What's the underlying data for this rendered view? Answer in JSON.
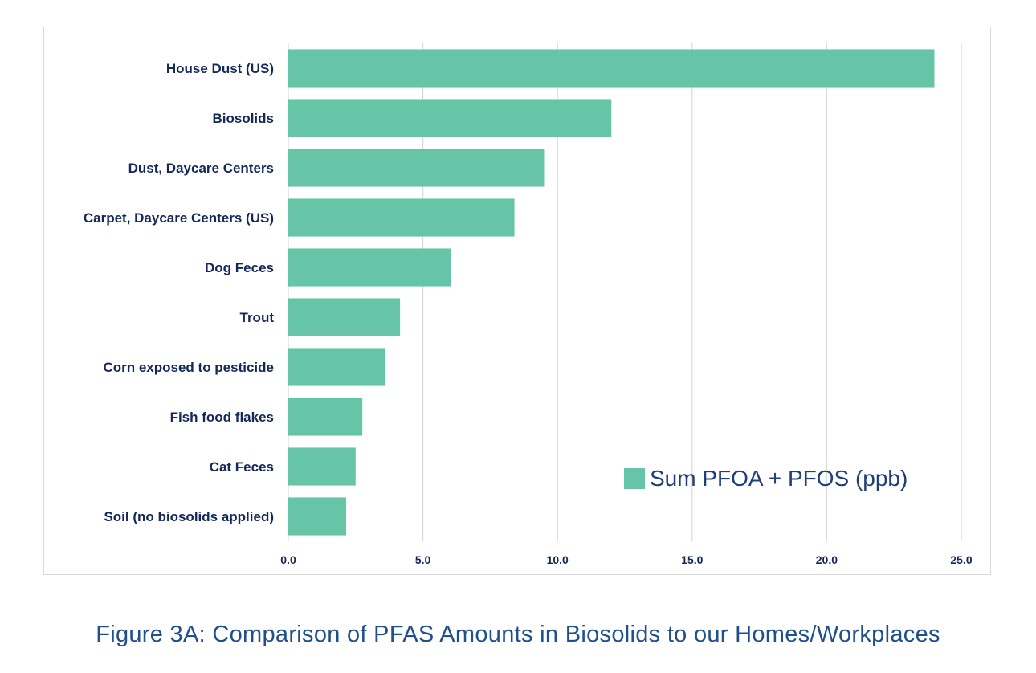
{
  "caption": "Figure 3A: Comparison of PFAS Amounts in Biosolids to our Homes/Workplaces",
  "colors": {
    "bar": "#67c5a7",
    "label": "#14285a",
    "grid": "#d9d9d9",
    "legend_text": "#1f3f7a",
    "caption": "#1f4f8c"
  },
  "chart_data": {
    "type": "bar",
    "orientation": "horizontal",
    "title": "",
    "xlabel": "",
    "ylabel": "",
    "categories": [
      "House Dust (US)",
      "Biosolids",
      "Dust, Daycare Centers",
      "Carpet, Daycare Centers (US)",
      "Dog Feces",
      "Trout",
      "Corn exposed to pesticide",
      "Fish food flakes",
      "Cat Feces",
      "Soil (no biosolids applied)"
    ],
    "series": [
      {
        "name": "Sum PFOA + PFOS (ppb)",
        "values": [
          24.0,
          12.0,
          9.5,
          8.4,
          6.05,
          4.15,
          3.6,
          2.75,
          2.5,
          2.15
        ]
      }
    ],
    "xlim": [
      0,
      25
    ],
    "xticks": [
      "0.0",
      "5.0",
      "10.0",
      "15.0",
      "20.0",
      "25.0"
    ],
    "grid": "vertical",
    "legend_position": "bottom-right"
  }
}
